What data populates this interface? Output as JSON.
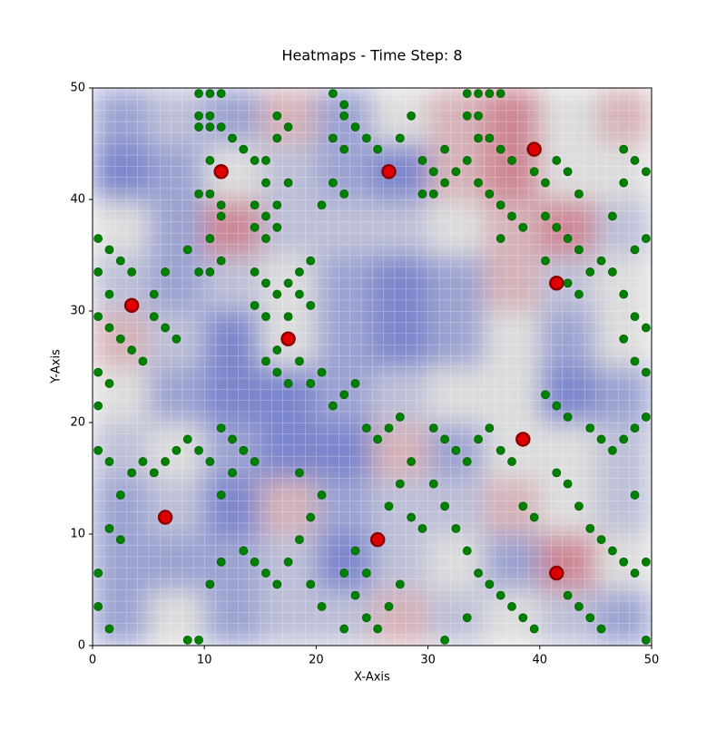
{
  "chart_data": {
    "type": "heatmap-scatter",
    "title": "Heatmaps - Time Step: 8",
    "xlabel": "X-Axis",
    "ylabel": "Y-Axis",
    "xlim": [
      0,
      50
    ],
    "ylim": [
      0,
      50
    ],
    "xticks": [
      0,
      10,
      20,
      30,
      40,
      50
    ],
    "yticks": [
      0,
      10,
      20,
      30,
      40,
      50
    ],
    "heatmap": {
      "cmap": [
        "#3b4cc0",
        "#dddddd",
        "#b40426"
      ],
      "vmin": 0,
      "vmax": 1,
      "values": [
        [
          0.3,
          0.5,
          0.3,
          0.4,
          0.4,
          0.6,
          0.4,
          0.5,
          0.4,
          0.3
        ],
        [
          0.3,
          0.3,
          0.3,
          0.4,
          0.2,
          0.4,
          0.5,
          0.3,
          0.7,
          0.5
        ],
        [
          0.3,
          0.4,
          0.2,
          0.6,
          0.3,
          0.4,
          0.4,
          0.6,
          0.5,
          0.4
        ],
        [
          0.4,
          0.5,
          0.3,
          0.2,
          0.2,
          0.6,
          0.3,
          0.5,
          0.5,
          0.4
        ],
        [
          0.5,
          0.3,
          0.2,
          0.2,
          0.3,
          0.4,
          0.5,
          0.5,
          0.2,
          0.3
        ],
        [
          0.6,
          0.4,
          0.2,
          0.5,
          0.3,
          0.2,
          0.3,
          0.5,
          0.3,
          0.5
        ],
        [
          0.4,
          0.3,
          0.4,
          0.5,
          0.3,
          0.2,
          0.3,
          0.6,
          0.4,
          0.5
        ],
        [
          0.5,
          0.3,
          0.7,
          0.4,
          0.4,
          0.4,
          0.5,
          0.6,
          0.7,
          0.4
        ],
        [
          0.2,
          0.3,
          0.5,
          0.4,
          0.3,
          0.2,
          0.6,
          0.7,
          0.5,
          0.5
        ],
        [
          0.3,
          0.4,
          0.3,
          0.6,
          0.3,
          0.5,
          0.6,
          0.7,
          0.5,
          0.6
        ]
      ]
    },
    "series": [
      {
        "color": "#008000",
        "edgecolor": "#006400",
        "x": [
          9.5,
          10.5,
          11.5,
          9.5,
          10.5,
          9.5,
          10.5,
          11.5,
          12.5,
          10.5,
          9.5,
          10.5,
          11.5,
          11.5,
          10.5,
          11.5,
          10.5,
          9.5,
          13.5,
          14.5,
          15.5,
          15.5,
          14.5,
          15.5,
          14.5,
          16.5,
          15.5,
          16.5,
          17.5,
          16.5,
          16.5,
          17.5,
          14.5,
          15.5,
          16.5,
          17.5,
          18.5,
          19.5,
          15.5,
          14.5,
          16.5,
          15.5,
          16.5,
          17.5,
          18.5,
          19.5,
          20.5,
          17.5,
          18.5,
          19.5,
          21.5,
          22.5,
          22.5,
          23.5,
          24.5,
          21.5,
          22.5,
          25.5,
          27.5,
          28.5,
          21.5,
          22.5,
          20.5,
          29.5,
          30.5,
          31.5,
          32.5,
          30.5,
          29.5,
          31.5,
          33.5,
          33.5,
          34.5,
          35.5,
          36.5,
          33.5,
          34.5,
          34.5,
          35.5,
          36.5,
          37.5,
          34.5,
          35.5,
          36.5,
          37.5,
          38.5,
          36.5,
          39.5,
          40.5,
          41.5,
          42.5,
          43.5,
          40.5,
          41.5,
          42.5,
          43.5,
          40.5,
          42.5,
          43.5,
          44.5,
          45.5,
          46.5,
          0.5,
          1.5,
          2.5,
          3.5,
          0.5,
          1.5,
          0.5,
          1.5,
          2.5,
          3.5,
          4.5,
          0.5,
          1.5,
          0.5,
          5.5,
          6.5,
          7.5,
          5.5,
          6.5,
          8.5,
          0.5,
          1.5,
          3.5,
          4.5,
          5.5,
          6.5,
          7.5,
          8.5,
          9.5,
          10.5,
          2.5,
          1.5,
          2.5,
          0.5,
          0.5,
          1.5,
          9.5,
          8.5,
          10.5,
          11.5,
          11.5,
          12.5,
          13.5,
          14.5,
          12.5,
          11.5,
          13.5,
          14.5,
          15.5,
          16.5,
          17.5,
          18.5,
          19.5,
          20.5,
          18.5,
          19.5,
          20.5,
          21.5,
          22.5,
          23.5,
          24.5,
          25.5,
          26.5,
          27.5,
          28.5,
          27.5,
          26.5,
          28.5,
          29.5,
          23.5,
          24.5,
          23.5,
          24.5,
          25.5,
          26.5,
          27.5,
          22.5,
          22.5,
          30.5,
          31.5,
          32.5,
          33.5,
          34.5,
          35.5,
          36.5,
          37.5,
          30.5,
          31.5,
          32.5,
          33.5,
          34.5,
          35.5,
          36.5,
          37.5,
          38.5,
          39.5,
          33.5,
          31.5,
          39.5,
          38.5,
          40.5,
          41.5,
          42.5,
          44.5,
          45.5,
          46.5,
          47.5,
          48.5,
          49.5,
          41.5,
          42.5,
          43.5,
          44.5,
          45.5,
          46.5,
          47.5,
          48.5,
          49.5,
          42.5,
          43.5,
          44.5,
          45.5,
          49.5,
          48.5,
          47.5,
          48.5,
          49.5,
          47.5,
          48.5,
          49.5,
          47.5,
          48.5,
          49.5,
          47.5,
          48.5,
          49.5,
          46.5
        ],
        "y": [
          49.5,
          49.5,
          49.5,
          47.5,
          47.5,
          46.5,
          46.5,
          46.5,
          45.5,
          43.5,
          40.5,
          40.5,
          39.5,
          38.5,
          36.5,
          34.5,
          33.5,
          33.5,
          44.5,
          43.5,
          43.5,
          41.5,
          39.5,
          38.5,
          37.5,
          37.5,
          36.5,
          39.5,
          41.5,
          45.5,
          47.5,
          46.5,
          33.5,
          32.5,
          31.5,
          32.5,
          31.5,
          30.5,
          29.5,
          30.5,
          26.5,
          25.5,
          24.5,
          23.5,
          25.5,
          23.5,
          24.5,
          29.5,
          33.5,
          34.5,
          49.5,
          48.5,
          47.5,
          46.5,
          45.5,
          45.5,
          44.5,
          44.5,
          45.5,
          47.5,
          41.5,
          40.5,
          39.5,
          43.5,
          42.5,
          41.5,
          42.5,
          40.5,
          40.5,
          44.5,
          43.5,
          49.5,
          49.5,
          49.5,
          49.5,
          47.5,
          47.5,
          45.5,
          45.5,
          44.5,
          43.5,
          41.5,
          40.5,
          39.5,
          38.5,
          37.5,
          36.5,
          42.5,
          41.5,
          43.5,
          42.5,
          40.5,
          38.5,
          37.5,
          36.5,
          35.5,
          34.5,
          32.5,
          31.5,
          33.5,
          34.5,
          33.5,
          36.5,
          35.5,
          34.5,
          33.5,
          33.5,
          31.5,
          29.5,
          28.5,
          27.5,
          26.5,
          25.5,
          24.5,
          23.5,
          21.5,
          29.5,
          28.5,
          27.5,
          31.5,
          33.5,
          35.5,
          17.5,
          16.5,
          15.5,
          16.5,
          15.5,
          16.5,
          17.5,
          18.5,
          17.5,
          16.5,
          13.5,
          10.5,
          9.5,
          6.5,
          3.5,
          1.5,
          0.5,
          0.5,
          5.5,
          7.5,
          19.5,
          18.5,
          17.5,
          16.5,
          15.5,
          13.5,
          8.5,
          7.5,
          6.5,
          5.5,
          7.5,
          9.5,
          11.5,
          13.5,
          15.5,
          5.5,
          3.5,
          21.5,
          22.5,
          23.5,
          19.5,
          18.5,
          19.5,
          20.5,
          16.5,
          14.5,
          12.5,
          11.5,
          10.5,
          8.5,
          6.5,
          4.5,
          2.5,
          1.5,
          3.5,
          5.5,
          6.5,
          1.5,
          19.5,
          18.5,
          17.5,
          16.5,
          18.5,
          19.5,
          17.5,
          16.5,
          14.5,
          12.5,
          10.5,
          8.5,
          6.5,
          5.5,
          4.5,
          3.5,
          2.5,
          1.5,
          2.5,
          0.5,
          11.5,
          12.5,
          22.5,
          21.5,
          20.5,
          19.5,
          18.5,
          17.5,
          18.5,
          19.5,
          20.5,
          15.5,
          14.5,
          12.5,
          10.5,
          9.5,
          8.5,
          7.5,
          6.5,
          7.5,
          4.5,
          3.5,
          2.5,
          1.5,
          0.5,
          13.5,
          44.5,
          43.5,
          42.5,
          41.5,
          35.5,
          36.5,
          31.5,
          29.5,
          28.5,
          27.5,
          25.5,
          24.5,
          38.5
        ]
      },
      {
        "color": "#e00000",
        "edgecolor": "#8b0000",
        "x": [
          11.5,
          26.5,
          39.5,
          41.5,
          3.5,
          17.5,
          38.5,
          6.5,
          25.5,
          41.5
        ],
        "y": [
          42.5,
          42.5,
          44.5,
          32.5,
          30.5,
          27.5,
          18.5,
          11.5,
          9.5,
          6.5
        ]
      }
    ]
  }
}
